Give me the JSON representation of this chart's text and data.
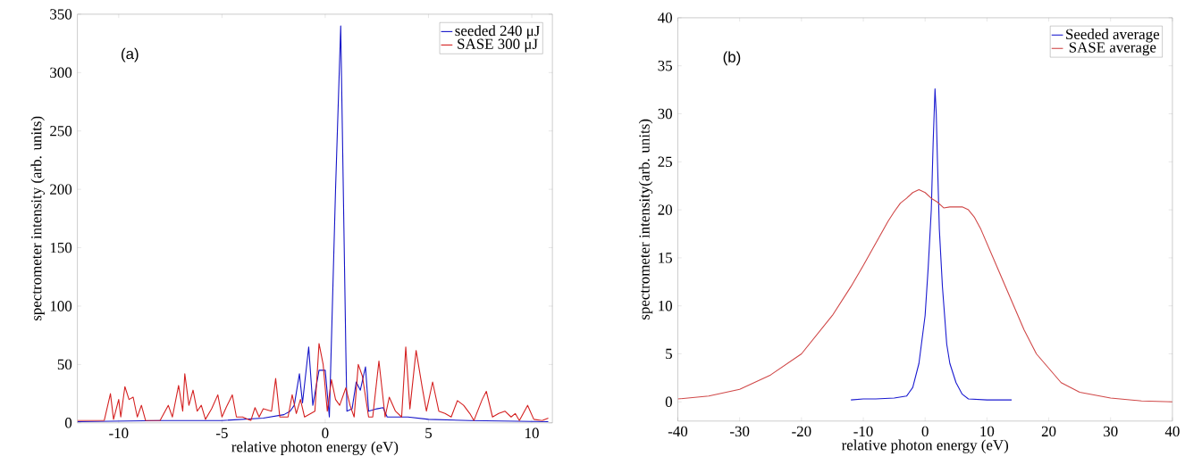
{
  "chart_data": [
    {
      "type": "line",
      "xlabel": "relative photon energy (eV)",
      "ylabel": "spectrometer intensity (arb. units)",
      "xlim": [
        -12,
        11
      ],
      "ylim": [
        0,
        350
      ],
      "xticks": [
        -10,
        -5,
        0,
        5,
        10
      ],
      "yticks": [
        0,
        50,
        100,
        150,
        200,
        250,
        300,
        350
      ],
      "legend": "top right",
      "marker": "none",
      "annotations": [
        "(a)"
      ],
      "series": [
        {
          "name": "seeded 240 μJ",
          "color": "#1414c8",
          "x": [
            -12,
            -8,
            -5,
            -3,
            -2,
            -1.7,
            -1.5,
            -1.25,
            -1.1,
            -0.8,
            -0.6,
            -0.3,
            0,
            0.2,
            0.5,
            0.75,
            1.0,
            1.05,
            1.3,
            1.5,
            1.7,
            1.95,
            2.1,
            2.5,
            2.8,
            3,
            4,
            5,
            7,
            10.8
          ],
          "values": [
            1,
            2,
            2,
            4,
            7,
            10,
            15,
            42,
            17,
            65,
            15,
            45,
            45,
            5,
            200,
            340,
            60,
            10,
            12,
            35,
            28,
            48,
            10,
            12,
            13,
            5,
            5,
            3,
            2,
            1
          ]
        },
        {
          "name": "SASE 300 μJ",
          "color": "#d42020",
          "x": [
            -12,
            -10.7,
            -10.4,
            -10.25,
            -10.0,
            -9.9,
            -9.7,
            -9.5,
            -9.3,
            -9.1,
            -8.9,
            -8.7,
            -8,
            -7.6,
            -7.4,
            -7.1,
            -6.9,
            -6.8,
            -6.6,
            -6.4,
            -6.2,
            -6,
            -5.8,
            -5.5,
            -5.2,
            -5.0,
            -4.8,
            -4.5,
            -4.3,
            -4,
            -3.6,
            -3.4,
            -3.2,
            -3.0,
            -2.6,
            -2.4,
            -2.2,
            -1.8,
            -1.6,
            -1.4,
            -1.2,
            -1.0,
            -0.5,
            -0.3,
            -0.1,
            0.1,
            0.3,
            0.5,
            0.7,
            1.0,
            1.2,
            1.4,
            1.6,
            1.8,
            2.1,
            2.3,
            2.6,
            2.9,
            3.1,
            3.4,
            3.7,
            3.9,
            4.1,
            4.4,
            4.7,
            4.9,
            5.2,
            5.5,
            5.8,
            6.1,
            6.4,
            6.7,
            7.0,
            7.2,
            7.6,
            7.8,
            8.1,
            8.4,
            8.7,
            9.0,
            9.2,
            9.4,
            9.8,
            10.1,
            10.5,
            10.8
          ],
          "values": [
            2,
            2,
            25,
            3,
            20,
            5,
            31,
            20,
            22,
            5,
            15,
            2,
            2,
            15,
            5,
            32,
            10,
            42,
            15,
            28,
            10,
            15,
            3,
            12,
            24,
            5,
            13,
            24,
            5,
            5,
            2,
            13,
            5,
            12,
            10,
            38,
            5,
            5,
            24,
            8,
            20,
            5,
            10,
            68,
            50,
            10,
            37,
            20,
            15,
            30,
            15,
            5,
            50,
            40,
            5,
            5,
            53,
            5,
            22,
            10,
            5,
            65,
            12,
            62,
            30,
            10,
            35,
            10,
            8,
            5,
            19,
            15,
            8,
            2,
            20,
            27,
            5,
            8,
            10,
            5,
            8,
            2,
            15,
            3,
            2,
            4
          ]
        }
      ]
    },
    {
      "type": "line",
      "xlabel": "relative photon energy (eV)",
      "ylabel": "spectrometer intensity(arb. units)",
      "xlim": [
        -40,
        40
      ],
      "ylim": [
        -2,
        40
      ],
      "xticks": [
        -40,
        -30,
        -20,
        -10,
        0,
        10,
        20,
        30,
        40
      ],
      "yticks": [
        0,
        5,
        10,
        15,
        20,
        25,
        30,
        35,
        40
      ],
      "legend": "top right",
      "marker": "none",
      "annotations": [
        "(b)"
      ],
      "series": [
        {
          "name": "Seeded average",
          "color": "#1a1ad0",
          "x": [
            -12,
            -10,
            -8,
            -5,
            -3,
            -2,
            -1,
            0,
            0.5,
            1,
            1.3,
            1.6,
            1.8,
            2,
            2.3,
            2.8,
            3.5,
            4,
            5,
            6,
            7,
            10,
            14
          ],
          "values": [
            0.2,
            0.3,
            0.3,
            0.4,
            0.6,
            1.5,
            4,
            9,
            14,
            20,
            27,
            32.6,
            30,
            25,
            18,
            12,
            6,
            4,
            2,
            0.8,
            0.3,
            0.2,
            0.2
          ]
        },
        {
          "name": "SASE average",
          "color": "#d04848",
          "x": [
            -40,
            -35,
            -30,
            -25,
            -20,
            -15,
            -12,
            -10,
            -8,
            -6,
            -5,
            -4,
            -3,
            -2,
            -1,
            0,
            1,
            2,
            3,
            4,
            5,
            6,
            7,
            8,
            9,
            10,
            12,
            14,
            16,
            18,
            20,
            22,
            25,
            30,
            35,
            40
          ],
          "values": [
            0.3,
            0.6,
            1.3,
            2.8,
            5,
            9,
            12,
            14.2,
            16.5,
            18.8,
            19.8,
            20.7,
            21.2,
            21.8,
            22.1,
            21.8,
            21.2,
            20.8,
            20.2,
            20.3,
            20.3,
            20.3,
            20.0,
            19.2,
            18,
            16.5,
            13.5,
            10.5,
            7.5,
            5,
            3.5,
            2,
            1,
            0.4,
            0.1,
            0
          ]
        }
      ]
    }
  ]
}
